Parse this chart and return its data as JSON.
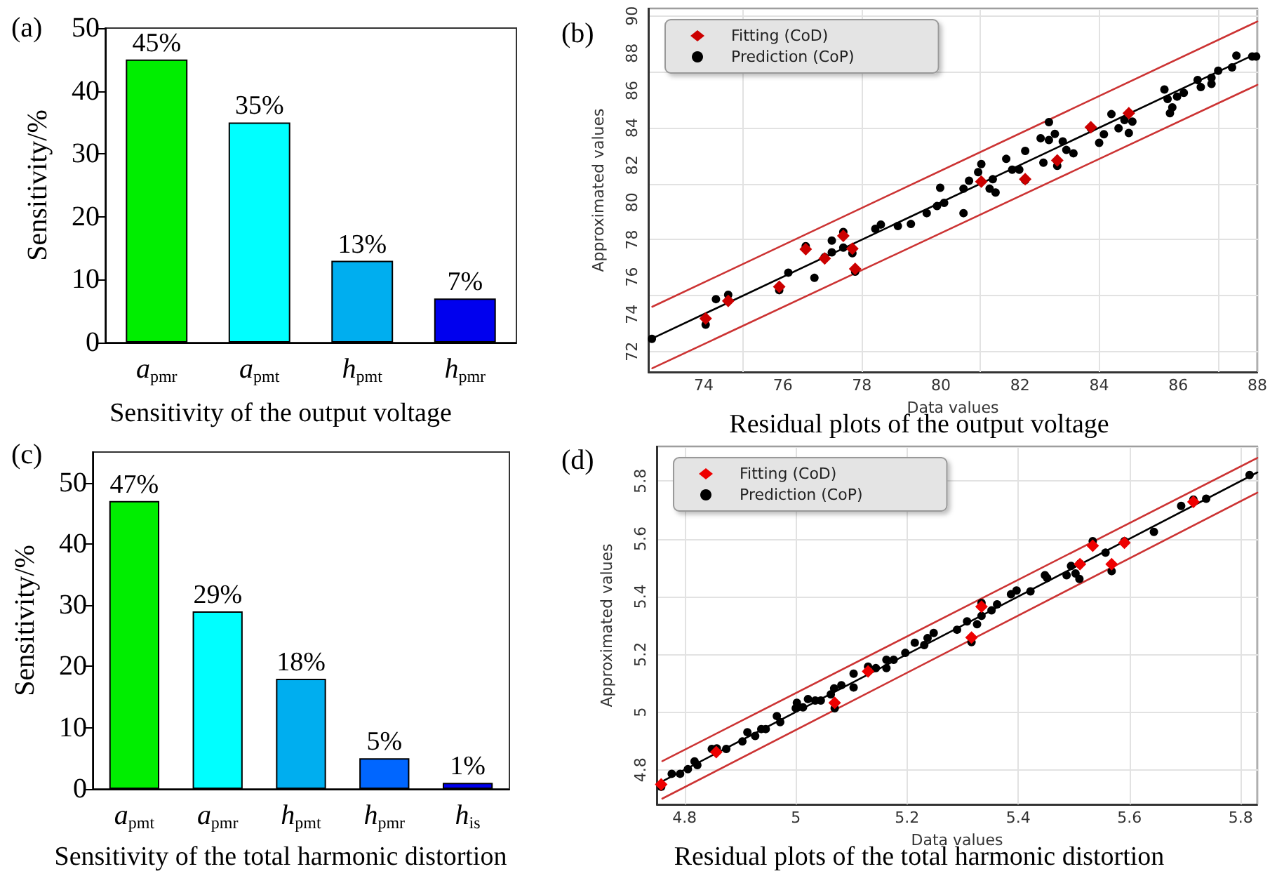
{
  "chart_data": [
    {
      "type": "bar",
      "title": "Sensitivity of the output voltage",
      "ylabel": "Sensitivity/%",
      "annotations": [
        "(a)"
      ],
      "categories": [
        "a$_{pmr}$",
        "a$_{pmt}$",
        "h$_{pmt}$",
        "h$_{pmr}$"
      ],
      "values": [
        45,
        35,
        13,
        7
      ],
      "colors": [
        "#00ee00",
        "#00ffff",
        "#00aeef",
        "#0000ee"
      ],
      "value_labels": [
        "45%",
        "35%",
        "13%",
        "7%"
      ],
      "ylim": [
        0,
        50
      ],
      "yticks": [
        0,
        10,
        20,
        30,
        40,
        50
      ]
    },
    {
      "type": "scatter",
      "title": "Residual plots of the output voltage",
      "xlabel": "Data values",
      "ylabel": "Approximated values",
      "annotations": [
        "(b)"
      ],
      "xlim": [
        72.6,
        88
      ],
      "xticks": [
        74,
        76,
        78,
        80,
        82,
        84,
        86,
        88
      ],
      "ylim": [
        70.9,
        90.4
      ],
      "yticks": [
        72,
        74,
        76,
        78,
        80,
        82,
        84,
        86,
        88,
        90
      ],
      "grid": true,
      "legend": "top left",
      "series": [
        {
          "type": "line",
          "color": "#000000",
          "marker": "none",
          "x": [
            72.7,
            88
          ],
          "values": [
            72.7,
            88
          ]
        },
        {
          "type": "line",
          "color": "#cc3333",
          "marker": "none",
          "x": [
            72.7,
            88
          ],
          "values": [
            74.4,
            89.7
          ]
        },
        {
          "type": "line",
          "color": "#cc3333",
          "marker": "none",
          "x": [
            72.7,
            88
          ],
          "values": [
            71.1,
            86.3
          ]
        },
        {
          "name": "Fitting (CoD)",
          "color": "#cc0000",
          "marker": "diamond",
          "x": [
            74.05,
            74.62,
            75.91,
            76.58,
            77.06,
            77.53,
            77.76,
            77.83,
            81.02,
            82.13,
            82.94,
            83.79,
            84.75
          ],
          "values": [
            73.77,
            74.71,
            75.47,
            77.49,
            76.99,
            78.2,
            77.52,
            76.43,
            81.11,
            81.24,
            82.25,
            84.03,
            84.78
          ]
        },
        {
          "name": "Prediction (CoP)",
          "color": "#000000",
          "marker": "circle",
          "x": [
            72.69,
            74.05,
            74.31,
            74.62,
            75.91,
            76.14,
            76.58,
            76.8,
            77.06,
            77.24,
            77.24,
            77.53,
            77.53,
            77.76,
            77.83,
            78.34,
            78.48,
            78.91,
            79.24,
            79.64,
            79.9,
            79.98,
            80.08,
            80.57,
            80.57,
            80.71,
            80.94,
            81.02,
            81.23,
            81.31,
            81.38,
            81.65,
            81.8,
            81.98,
            82.13,
            82.13,
            82.52,
            82.59,
            82.73,
            82.73,
            82.88,
            82.94,
            83.08,
            83.17,
            83.35,
            83.79,
            84.0,
            84.12,
            84.31,
            84.49,
            84.64,
            84.75,
            84.84,
            85.65,
            85.73,
            85.79,
            85.85,
            85.97,
            86.14,
            86.49,
            86.57,
            86.84,
            86.84,
            87.01,
            87.36,
            87.47,
            87.87,
            87.97
          ],
          "values": [
            72.68,
            73.44,
            74.81,
            75.04,
            75.29,
            76.23,
            77.65,
            75.95,
            77.06,
            77.95,
            77.32,
            78.41,
            77.57,
            77.27,
            76.28,
            78.58,
            78.81,
            78.73,
            78.84,
            79.42,
            79.8,
            80.78,
            79.97,
            79.42,
            80.73,
            81.16,
            81.62,
            82.05,
            80.73,
            81.24,
            80.53,
            82.33,
            81.75,
            81.75,
            82.76,
            81.19,
            83.44,
            82.13,
            83.34,
            84.3,
            83.67,
            81.96,
            83.27,
            82.81,
            82.63,
            83.97,
            83.19,
            83.65,
            84.73,
            83.97,
            84.41,
            83.72,
            84.33,
            86.05,
            85.54,
            84.78,
            85.09,
            85.67,
            85.87,
            86.56,
            86.18,
            86.68,
            86.35,
            87.06,
            87.24,
            87.87,
            87.82,
            87.82
          ]
        }
      ]
    },
    {
      "type": "bar",
      "title": "Sensitivity of the total harmonic distortion",
      "ylabel": "Sensitivity/%",
      "annotations": [
        "(c)"
      ],
      "categories": [
        "a$_{pmt}$",
        "a$_{pmr}$",
        "h$_{pmt}$",
        "h$_{pmr}$",
        "h$_{is}$"
      ],
      "values": [
        47,
        29,
        18,
        5,
        1
      ],
      "colors": [
        "#00ee00",
        "#00ffff",
        "#00aeef",
        "#0066ff",
        "#0000ee"
      ],
      "value_labels": [
        "47%",
        "29%",
        "18%",
        "5%",
        "1%"
      ],
      "ylim": [
        0,
        55
      ],
      "yticks": [
        0,
        10,
        20,
        30,
        40,
        50
      ]
    },
    {
      "type": "scatter",
      "title": "Residual plots of the total harmonic distortion",
      "xlabel": "Data values",
      "ylabel": "Approximated values",
      "annotations": [
        "(d)"
      ],
      "xlim": [
        4.75,
        5.83
      ],
      "xticks": [
        4.8,
        5,
        5.2,
        5.4,
        5.6,
        5.8
      ],
      "ylim": [
        4.68,
        5.92
      ],
      "yticks": [
        4.8,
        5,
        5.2,
        5.4,
        5.6,
        5.8
      ],
      "grid": true,
      "legend": "top left",
      "series": [
        {
          "type": "line",
          "color": "#000000",
          "marker": "none",
          "x": [
            4.76,
            5.83
          ],
          "values": [
            4.76,
            5.83
          ]
        },
        {
          "type": "line",
          "color": "#cc3333",
          "marker": "none",
          "x": [
            4.76,
            5.83
          ],
          "values": [
            4.83,
            5.88
          ]
        },
        {
          "type": "line",
          "color": "#cc3333",
          "marker": "none",
          "x": [
            4.76,
            5.83
          ],
          "values": [
            4.7,
            5.76
          ]
        },
        {
          "name": "Fitting (CoD)",
          "color": "#ee0000",
          "marker": "diamond",
          "x": [
            4.758,
            4.857,
            5.07,
            5.13,
            5.316,
            5.334,
            5.511,
            5.534,
            5.568,
            5.591,
            5.715
          ],
          "values": [
            4.749,
            4.861,
            5.032,
            5.141,
            5.258,
            5.365,
            5.512,
            5.576,
            5.512,
            5.586,
            5.728
          ]
        },
        {
          "name": "Prediction (CoP)",
          "color": "#000000",
          "marker": "circle",
          "x": [
            4.758,
            4.777,
            4.792,
            4.806,
            4.818,
            4.823,
            4.849,
            4.858,
            4.875,
            4.904,
            4.913,
            4.927,
            4.938,
            4.946,
            4.966,
            4.972,
            5.0,
            5.002,
            5.013,
            5.022,
            5.035,
            5.045,
            5.063,
            5.07,
            5.069,
            5.082,
            5.104,
            5.104,
            5.13,
            5.144,
            5.163,
            5.163,
            5.176,
            5.197,
            5.214,
            5.231,
            5.237,
            5.248,
            5.29,
            5.308,
            5.316,
            5.326,
            5.334,
            5.334,
            5.352,
            5.362,
            5.387,
            5.397,
            5.422,
            5.448,
            5.452,
            5.487,
            5.495,
            5.503,
            5.51,
            5.511,
            5.534,
            5.557,
            5.568,
            5.591,
            5.644,
            5.693,
            5.715,
            5.738,
            5.816
          ],
          "values": [
            4.741,
            4.786,
            4.786,
            4.802,
            4.829,
            4.816,
            4.872,
            4.874,
            4.872,
            4.898,
            4.93,
            4.917,
            4.941,
            4.941,
            4.986,
            4.965,
            5.013,
            5.032,
            5.016,
            5.045,
            5.04,
            5.04,
            5.061,
            5.013,
            5.082,
            5.093,
            5.133,
            5.085,
            5.157,
            5.152,
            5.181,
            5.152,
            5.181,
            5.205,
            5.24,
            5.232,
            5.256,
            5.274,
            5.285,
            5.314,
            5.242,
            5.304,
            5.333,
            5.378,
            5.352,
            5.373,
            5.408,
            5.421,
            5.418,
            5.474,
            5.464,
            5.474,
            5.506,
            5.48,
            5.461,
            5.514,
            5.592,
            5.552,
            5.488,
            5.592,
            5.624,
            5.714,
            5.736,
            5.739,
            5.821
          ]
        }
      ]
    }
  ]
}
